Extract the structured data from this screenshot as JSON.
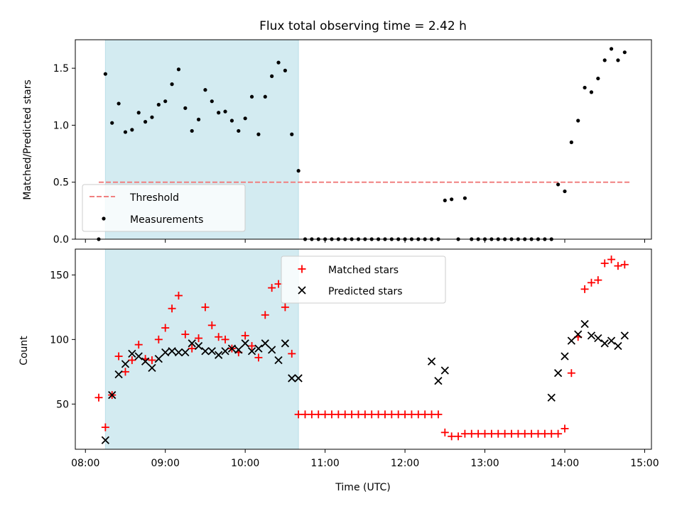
{
  "chart_data": [
    {
      "type": "scatter",
      "title": "Flux total observing time = 2.42 h",
      "ylabel": "Matched/Predicted stars",
      "ylim": [
        0,
        1.75
      ],
      "yticks": [
        0.0,
        0.5,
        1.0,
        1.5
      ],
      "ytick_labels": [
        "0.0",
        "0.5",
        "1.0",
        "1.5"
      ],
      "xlim": [
        "08:00",
        "15:00"
      ],
      "highlight_span": [
        "08:15",
        "10:40"
      ],
      "highlight_color": "#d3ebf1",
      "threshold": {
        "name": "Threshold",
        "y": 0.5,
        "x": [
          "08:10",
          "14:50"
        ],
        "color": "#f08080",
        "style": "dashed"
      },
      "series": [
        {
          "name": "Measurements",
          "color": "#000000",
          "marker": "dot",
          "x": [
            "08:10",
            "08:15",
            "08:20",
            "08:25",
            "08:30",
            "08:35",
            "08:40",
            "08:45",
            "08:50",
            "08:55",
            "09:00",
            "09:05",
            "09:10",
            "09:15",
            "09:20",
            "09:25",
            "09:30",
            "09:35",
            "09:40",
            "09:45",
            "09:50",
            "09:55",
            "10:00",
            "10:05",
            "10:10",
            "10:15",
            "10:20",
            "10:25",
            "10:30",
            "10:35",
            "10:40",
            "10:45",
            "10:50",
            "10:55",
            "11:00",
            "11:05",
            "11:10",
            "11:15",
            "11:20",
            "11:25",
            "11:30",
            "11:35",
            "11:40",
            "11:45",
            "11:50",
            "11:55",
            "12:00",
            "12:05",
            "12:10",
            "12:15",
            "12:20",
            "12:25",
            "12:30",
            "12:35",
            "12:40",
            "12:45",
            "12:50",
            "12:55",
            "13:00",
            "13:05",
            "13:10",
            "13:15",
            "13:20",
            "13:25",
            "13:30",
            "13:35",
            "13:40",
            "13:45",
            "13:50",
            "13:55",
            "14:00",
            "14:05",
            "14:10",
            "14:15",
            "14:20",
            "14:25",
            "14:30",
            "14:35",
            "14:40",
            "14:45"
          ],
          "y": [
            0.0,
            1.45,
            1.02,
            1.19,
            0.94,
            0.96,
            1.11,
            1.03,
            1.07,
            1.18,
            1.21,
            1.36,
            1.49,
            1.15,
            0.95,
            1.05,
            1.31,
            1.21,
            1.11,
            1.12,
            1.04,
            0.95,
            1.06,
            1.25,
            0.92,
            1.25,
            1.43,
            1.55,
            1.48,
            0.92,
            0.6,
            0.0,
            0.0,
            0.0,
            0.0,
            0.0,
            0.0,
            0.0,
            0.0,
            0.0,
            0.0,
            0.0,
            0.0,
            0.0,
            0.0,
            0.0,
            0.0,
            0.0,
            0.0,
            0.0,
            0.0,
            0.0,
            0.34,
            0.35,
            0.0,
            0.36,
            0.0,
            0.0,
            0.0,
            0.0,
            0.0,
            0.0,
            0.0,
            0.0,
            0.0,
            0.0,
            0.0,
            0.0,
            0.0,
            0.48,
            0.42,
            0.85,
            1.04,
            1.33,
            1.29,
            1.41,
            1.57,
            1.67,
            1.57,
            1.64
          ]
        }
      ],
      "legend": {
        "placement": "lower-left",
        "entries": [
          "Threshold",
          "Measurements"
        ]
      }
    },
    {
      "type": "scatter",
      "xlabel": "Time (UTC)",
      "ylabel": "Count",
      "ylim": [
        15,
        170
      ],
      "yticks": [
        50,
        100,
        150
      ],
      "ytick_labels": [
        "50",
        "100",
        "150"
      ],
      "xlim": [
        "08:00",
        "15:00"
      ],
      "xticks": [
        "08:00",
        "09:00",
        "10:00",
        "11:00",
        "12:00",
        "13:00",
        "14:00",
        "15:00"
      ],
      "xtick_labels": [
        "08:00",
        "09:00",
        "10:00",
        "11:00",
        "12:00",
        "13:00",
        "14:00",
        "15:00"
      ],
      "highlight_span": [
        "08:15",
        "10:40"
      ],
      "highlight_color": "#d3ebf1",
      "series": [
        {
          "name": "Matched stars",
          "color": "#ff0000",
          "marker": "plus",
          "x": [
            "08:10",
            "08:15",
            "08:20",
            "08:25",
            "08:30",
            "08:35",
            "08:40",
            "08:45",
            "08:50",
            "08:55",
            "09:00",
            "09:05",
            "09:10",
            "09:15",
            "09:20",
            "09:25",
            "09:30",
            "09:35",
            "09:40",
            "09:45",
            "09:50",
            "09:55",
            "10:00",
            "10:05",
            "10:10",
            "10:15",
            "10:20",
            "10:25",
            "10:30",
            "10:35",
            "10:40",
            "10:45",
            "10:50",
            "10:55",
            "11:00",
            "11:05",
            "11:10",
            "11:15",
            "11:20",
            "11:25",
            "11:30",
            "11:35",
            "11:40",
            "11:45",
            "11:50",
            "11:55",
            "12:00",
            "12:05",
            "12:10",
            "12:15",
            "12:20",
            "12:25",
            "12:30",
            "12:35",
            "12:40",
            "12:45",
            "12:50",
            "12:55",
            "13:00",
            "13:05",
            "13:10",
            "13:15",
            "13:20",
            "13:25",
            "13:30",
            "13:35",
            "13:40",
            "13:45",
            "13:50",
            "13:55",
            "14:00",
            "14:05",
            "14:10",
            "14:15",
            "14:20",
            "14:25",
            "14:30",
            "14:35",
            "14:40",
            "14:45"
          ],
          "y": [
            55,
            32,
            57,
            87,
            75,
            84,
            96,
            85,
            84,
            100,
            109,
            124,
            134,
            104,
            93,
            101,
            125,
            111,
            102,
            100,
            93,
            90,
            103,
            95,
            86,
            119,
            140,
            143,
            125,
            89,
            42,
            42,
            42,
            42,
            42,
            42,
            42,
            42,
            42,
            42,
            42,
            42,
            42,
            42,
            42,
            42,
            42,
            42,
            42,
            42,
            42,
            42,
            28,
            25,
            25,
            27,
            27,
            27,
            27,
            27,
            27,
            27,
            27,
            27,
            27,
            27,
            27,
            27,
            27,
            27,
            31,
            74,
            102,
            139,
            144,
            146,
            159,
            162,
            157,
            158
          ]
        },
        {
          "name": "Predicted stars",
          "color": "#000000",
          "marker": "x",
          "x": [
            "08:15",
            "08:20",
            "08:25",
            "08:30",
            "08:35",
            "08:40",
            "08:45",
            "08:50",
            "08:55",
            "09:00",
            "09:05",
            "09:10",
            "09:15",
            "09:20",
            "09:25",
            "09:30",
            "09:35",
            "09:40",
            "09:45",
            "09:50",
            "09:55",
            "10:00",
            "10:05",
            "10:10",
            "10:15",
            "10:20",
            "10:25",
            "10:30",
            "10:35",
            "10:40",
            "12:20",
            "12:25",
            "12:30",
            "13:50",
            "13:55",
            "14:00",
            "14:05",
            "14:10",
            "14:15",
            "14:20",
            "14:25",
            "14:30",
            "14:35",
            "14:40",
            "14:45"
          ],
          "y": [
            22,
            57,
            73,
            81,
            89,
            87,
            83,
            78,
            85,
            90,
            91,
            90,
            90,
            97,
            95,
            91,
            91,
            88,
            91,
            93,
            92,
            97,
            91,
            93,
            97,
            92,
            84,
            97,
            70,
            70,
            83,
            68,
            76,
            55,
            74,
            87,
            99,
            104,
            112,
            103,
            101,
            97,
            99,
            95,
            103
          ]
        }
      ],
      "legend": {
        "placement": "upper-center",
        "entries": [
          "Matched stars",
          "Predicted stars"
        ]
      }
    }
  ]
}
